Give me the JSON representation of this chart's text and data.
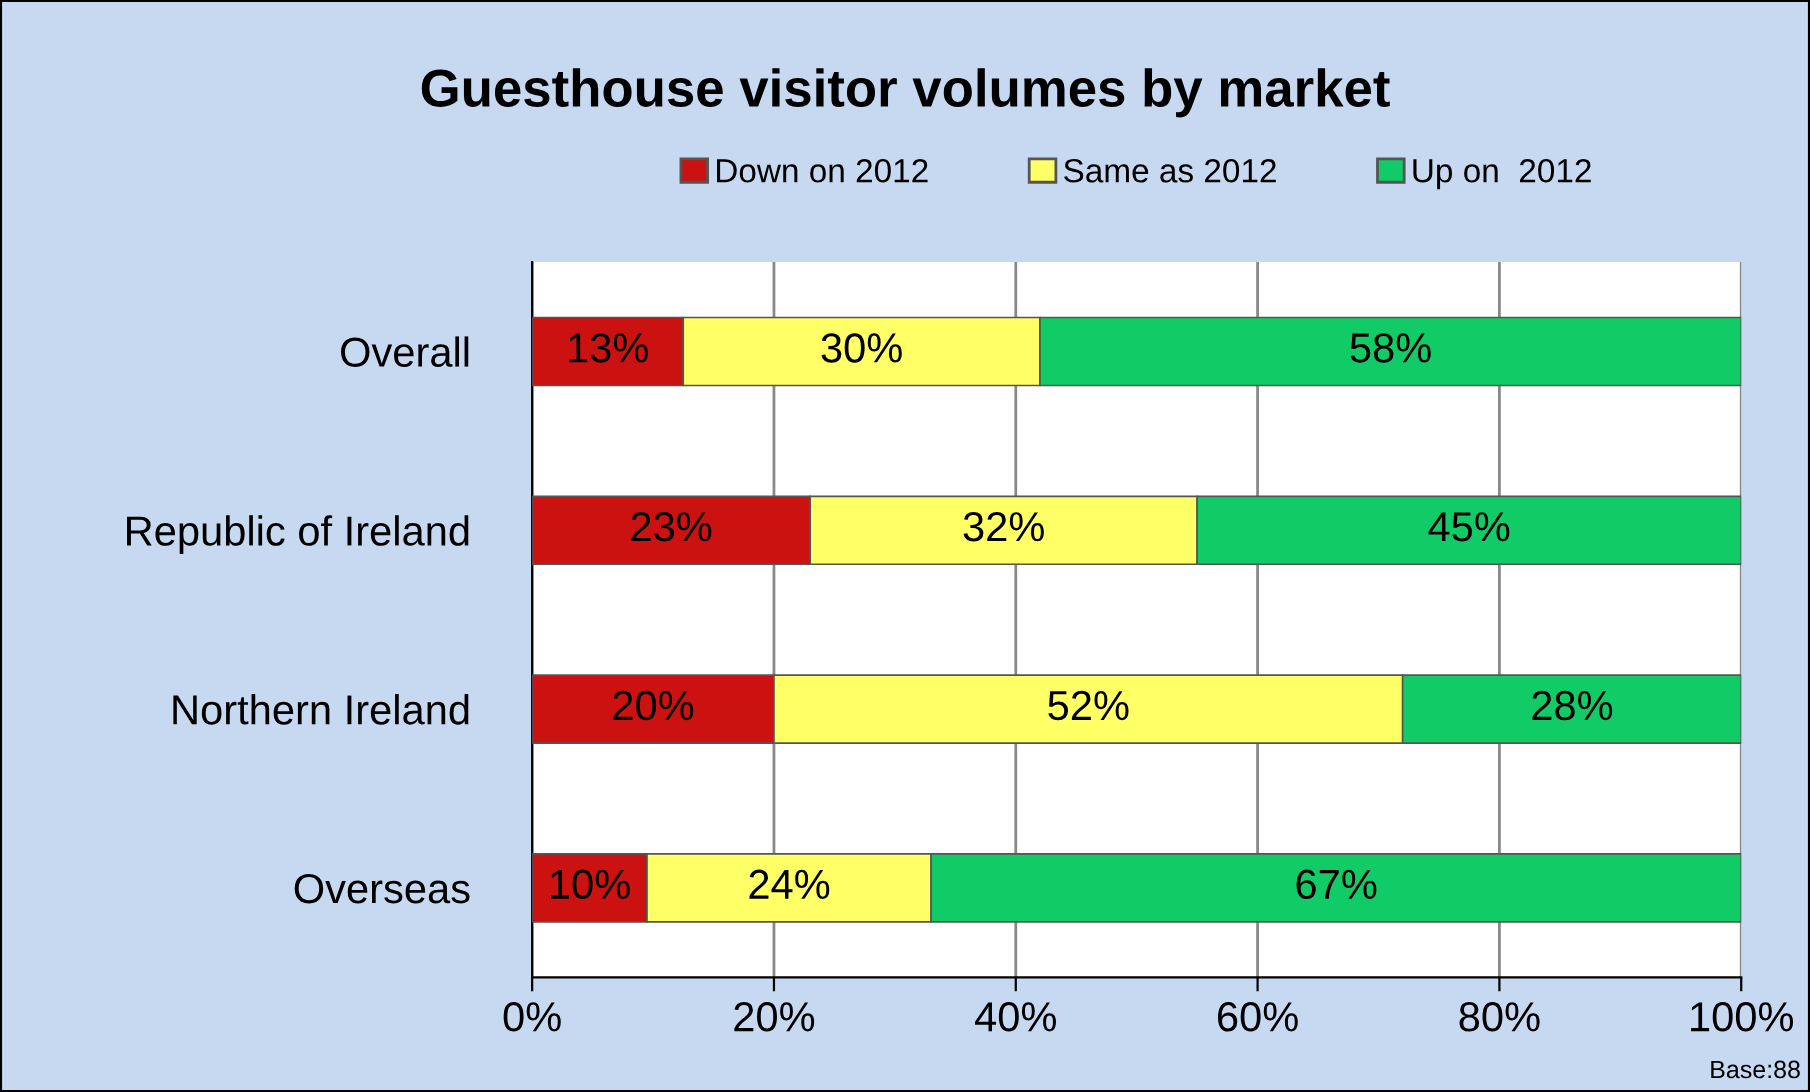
{
  "chart_data": {
    "type": "bar",
    "orientation": "horizontal",
    "stacked": true,
    "title": "Guesthouse visitor volumes by market",
    "categories": [
      "Overall",
      "Republic of Ireland",
      "Northern Ireland",
      "Overseas"
    ],
    "series": [
      {
        "name": "Down on 2012",
        "color": "#cc1111",
        "values": [
          12.5,
          23,
          20,
          9.5
        ],
        "value_labels": [
          "13%",
          "23%",
          "20%",
          "10%"
        ]
      },
      {
        "name": "Same as 2012",
        "color": "#ffff66",
        "values": [
          29.5,
          32,
          52,
          23.5
        ],
        "value_labels": [
          "30%",
          "32%",
          "52%",
          "24%"
        ]
      },
      {
        "name": "Up on  2012",
        "color": "#11cc66",
        "values": [
          58,
          45,
          28,
          67
        ],
        "value_labels": [
          "58%",
          "45%",
          "28%",
          "67%"
        ]
      }
    ],
    "xlim": [
      0,
      100
    ],
    "xticks": [
      {
        "value": 0,
        "label": "0%"
      },
      {
        "value": 20,
        "label": "20%"
      },
      {
        "value": 40,
        "label": "40%"
      },
      {
        "value": 60,
        "label": "60%"
      },
      {
        "value": 80,
        "label": "80%"
      },
      {
        "value": 100,
        "label": "100%"
      }
    ],
    "grid": "x",
    "legend": "top",
    "annotations": [
      "Base:88"
    ]
  }
}
